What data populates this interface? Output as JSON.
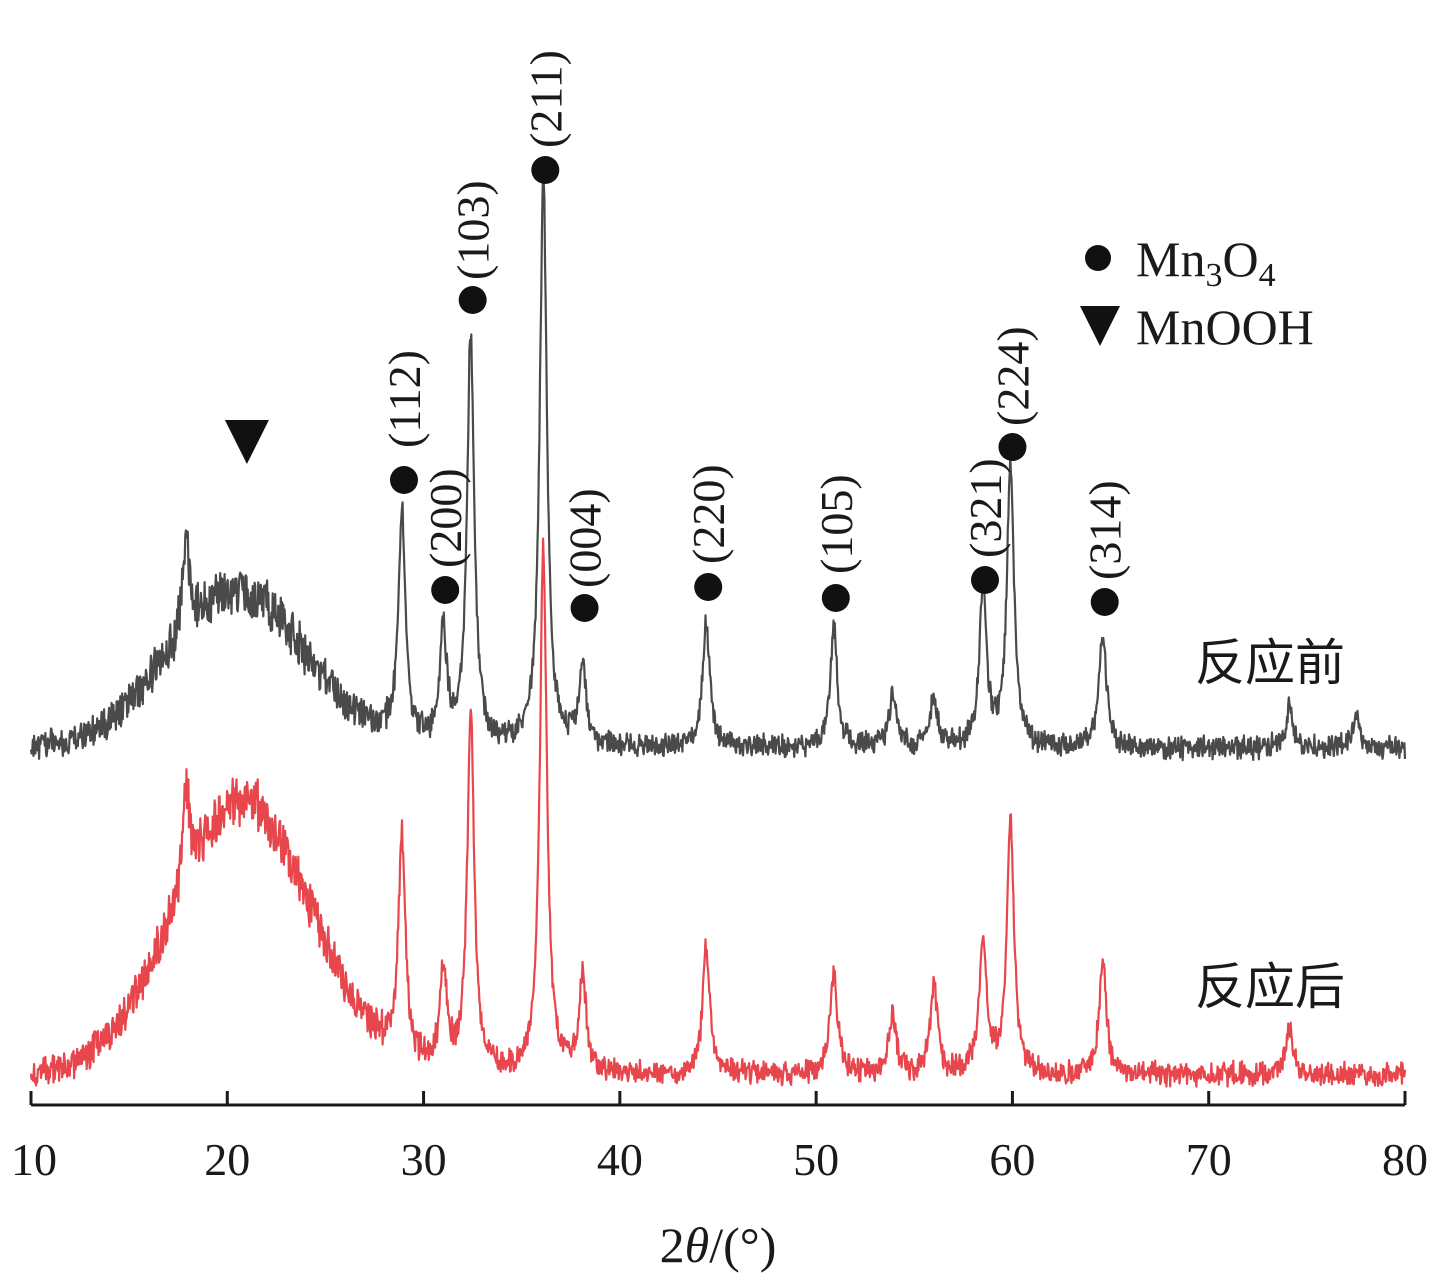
{
  "chart_data": {
    "type": "line",
    "title": "",
    "xlabel": "2θ/(°)",
    "xlabel_parts": {
      "prefix": "2",
      "theta": "θ",
      "suffix": "/(°)"
    },
    "ylabel": "",
    "xlim": [
      10,
      80
    ],
    "x_ticks": [
      10,
      20,
      30,
      40,
      50,
      60,
      70,
      80
    ],
    "x_tick_labels": [
      "10",
      "20",
      "30",
      "40",
      "50",
      "60",
      "70",
      "80"
    ],
    "grid": false,
    "y_axis_shown": false,
    "legend": {
      "placement": "top-right",
      "entries": [
        {
          "marker": "filled-circle",
          "label_parts": [
            "Mn",
            "3",
            "O",
            "4"
          ],
          "label": "Mn3O4"
        },
        {
          "marker": "filled-down-triangle",
          "label": "MnOOH"
        }
      ]
    },
    "series": [
      {
        "name": "反应前",
        "color": "#4a4a4a",
        "baseline": 0.0,
        "noise": 0.18,
        "hump": {
          "center": 20.5,
          "width": 3.5,
          "height": 1.55
        },
        "peaks": [
          {
            "x": 17.9,
            "height": 0.9
          },
          {
            "x": 28.9,
            "height": 2.3
          },
          {
            "x": 31.0,
            "height": 1.1
          },
          {
            "x": 32.4,
            "height": 4.1
          },
          {
            "x": 36.1,
            "height": 5.7
          },
          {
            "x": 38.1,
            "height": 0.85
          },
          {
            "x": 44.4,
            "height": 1.25
          },
          {
            "x": 50.9,
            "height": 1.2
          },
          {
            "x": 53.9,
            "height": 0.55
          },
          {
            "x": 56.0,
            "height": 0.5
          },
          {
            "x": 58.5,
            "height": 1.6
          },
          {
            "x": 59.9,
            "height": 2.8
          },
          {
            "x": 64.6,
            "height": 1.15
          },
          {
            "x": 74.1,
            "height": 0.4
          },
          {
            "x": 77.5,
            "height": 0.3
          }
        ]
      },
      {
        "name": "反应后",
        "color": "#e8464d",
        "baseline": 0.0,
        "noise": 0.18,
        "hump": {
          "center": 20.8,
          "width": 3.5,
          "height": 2.6
        },
        "peaks": [
          {
            "x": 17.9,
            "height": 0.9
          },
          {
            "x": 28.9,
            "height": 2.1
          },
          {
            "x": 31.0,
            "height": 0.95
          },
          {
            "x": 32.4,
            "height": 3.4
          },
          {
            "x": 36.1,
            "height": 5.0
          },
          {
            "x": 38.1,
            "height": 0.9
          },
          {
            "x": 44.4,
            "height": 1.2
          },
          {
            "x": 50.9,
            "height": 1.0
          },
          {
            "x": 53.9,
            "height": 0.55
          },
          {
            "x": 56.0,
            "height": 0.85
          },
          {
            "x": 58.5,
            "height": 1.3
          },
          {
            "x": 59.9,
            "height": 2.4
          },
          {
            "x": 64.6,
            "height": 1.1
          },
          {
            "x": 74.1,
            "height": 0.45
          }
        ]
      }
    ],
    "annotations": [
      {
        "marker": "filled-down-triangle",
        "x": 21.0,
        "label": ""
      },
      {
        "marker": "filled-circle",
        "x": 28.9,
        "label": "(112)"
      },
      {
        "marker": "filled-circle",
        "x": 31.0,
        "label": "(200)"
      },
      {
        "marker": "filled-circle",
        "x": 32.4,
        "label": "(103)"
      },
      {
        "marker": "filled-circle",
        "x": 36.1,
        "label": "(211)"
      },
      {
        "marker": "filled-circle",
        "x": 38.1,
        "label": "(004)"
      },
      {
        "marker": "filled-circle",
        "x": 44.4,
        "label": "(220)"
      },
      {
        "marker": "filled-circle",
        "x": 50.9,
        "label": "(105)"
      },
      {
        "marker": "filled-circle",
        "x": 58.5,
        "label": "(321)"
      },
      {
        "marker": "filled-circle",
        "x": 59.9,
        "label": "(224)"
      },
      {
        "marker": "filled-circle",
        "x": 64.6,
        "label": "(314)"
      }
    ]
  }
}
